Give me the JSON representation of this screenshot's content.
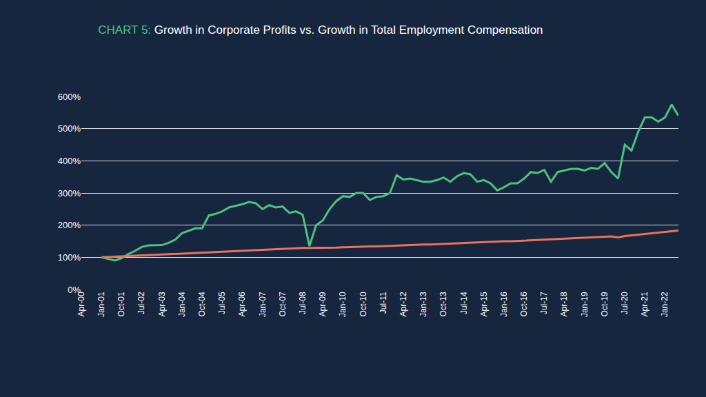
{
  "chart_data": {
    "type": "line",
    "title": "CHART 5: Growth in Corporate Profits vs. Growth in Total Employment Compensation",
    "categories": [
      "Apr-00",
      null,
      null,
      "Jan-01",
      null,
      null,
      "Oct-01",
      null,
      null,
      "Jul-02",
      null,
      null,
      "Apr-03",
      null,
      null,
      "Jan-04",
      null,
      null,
      "Oct-04",
      null,
      null,
      "Jul-05",
      null,
      null,
      "Apr-06",
      null,
      null,
      "Jan-07",
      null,
      null,
      "Oct-07",
      null,
      null,
      "Jul-08",
      null,
      null,
      "Apr-09",
      null,
      null,
      "Jan-10",
      null,
      null,
      "Oct-10",
      null,
      null,
      "Jul-11",
      null,
      null,
      "Apr-12",
      null,
      null,
      "Jan-13",
      null,
      null,
      "Oct-13",
      null,
      null,
      "Jul-14",
      null,
      null,
      "Apr-15",
      null,
      null,
      "Jan-16",
      null,
      null,
      "Oct-16",
      null,
      null,
      "Jul-17",
      null,
      null,
      "Apr-18",
      null,
      null,
      "Jan-19",
      null,
      null,
      "Oct-19",
      null,
      null,
      "Jul-20",
      null,
      null,
      "Apr-21",
      null,
      null,
      "Jan-22",
      null,
      null
    ],
    "series": [
      {
        "color": "#4cc27e",
        "values": [
          null,
          null,
          null,
          100,
          95,
          90,
          97,
          110,
          120,
          132,
          137,
          137,
          138,
          145,
          155,
          175,
          182,
          190,
          190,
          230,
          235,
          243,
          255,
          260,
          265,
          272,
          268,
          250,
          262,
          255,
          258,
          238,
          243,
          232,
          135,
          200,
          215,
          250,
          275,
          290,
          288,
          300,
          300,
          278,
          288,
          290,
          300,
          355,
          342,
          345,
          340,
          335,
          335,
          340,
          348,
          335,
          352,
          362,
          358,
          335,
          340,
          330,
          308,
          318,
          330,
          330,
          345,
          365,
          362,
          372,
          335,
          365,
          370,
          375,
          375,
          370,
          378,
          375,
          393,
          365,
          345,
          450,
          432,
          490,
          535,
          535,
          522,
          535,
          575,
          540
        ]
      },
      {
        "color": "#ec7258",
        "values": [
          null,
          null,
          null,
          100,
          101,
          102,
          103,
          104,
          105,
          106,
          107,
          108,
          109,
          110,
          111,
          112,
          113,
          113,
          114,
          115,
          116,
          117,
          118,
          119,
          120,
          121,
          122,
          123,
          124,
          125,
          126,
          127,
          128,
          129,
          129,
          129,
          129,
          130,
          130,
          131,
          132,
          132,
          133,
          134,
          134,
          135,
          136,
          137,
          137,
          138,
          139,
          140,
          140,
          141,
          142,
          143,
          144,
          145,
          145,
          146,
          147,
          148,
          149,
          150,
          150,
          151,
          152,
          153,
          154,
          155,
          156,
          157,
          158,
          159,
          160,
          161,
          162,
          163,
          164,
          165,
          162,
          166,
          168,
          170,
          172,
          174,
          176,
          178,
          180,
          183
        ]
      }
    ],
    "ylim": [
      0,
      600
    ],
    "yticks": [
      {
        "value": 0,
        "label": "0%"
      },
      {
        "value": 100,
        "label": "100%"
      },
      {
        "value": 200,
        "label": "200%"
      },
      {
        "value": 300,
        "label": "300%"
      },
      {
        "value": 400,
        "label": "400%"
      },
      {
        "value": 500,
        "label": "500%"
      },
      {
        "value": 600,
        "label": "600%"
      }
    ],
    "grid": true
  }
}
